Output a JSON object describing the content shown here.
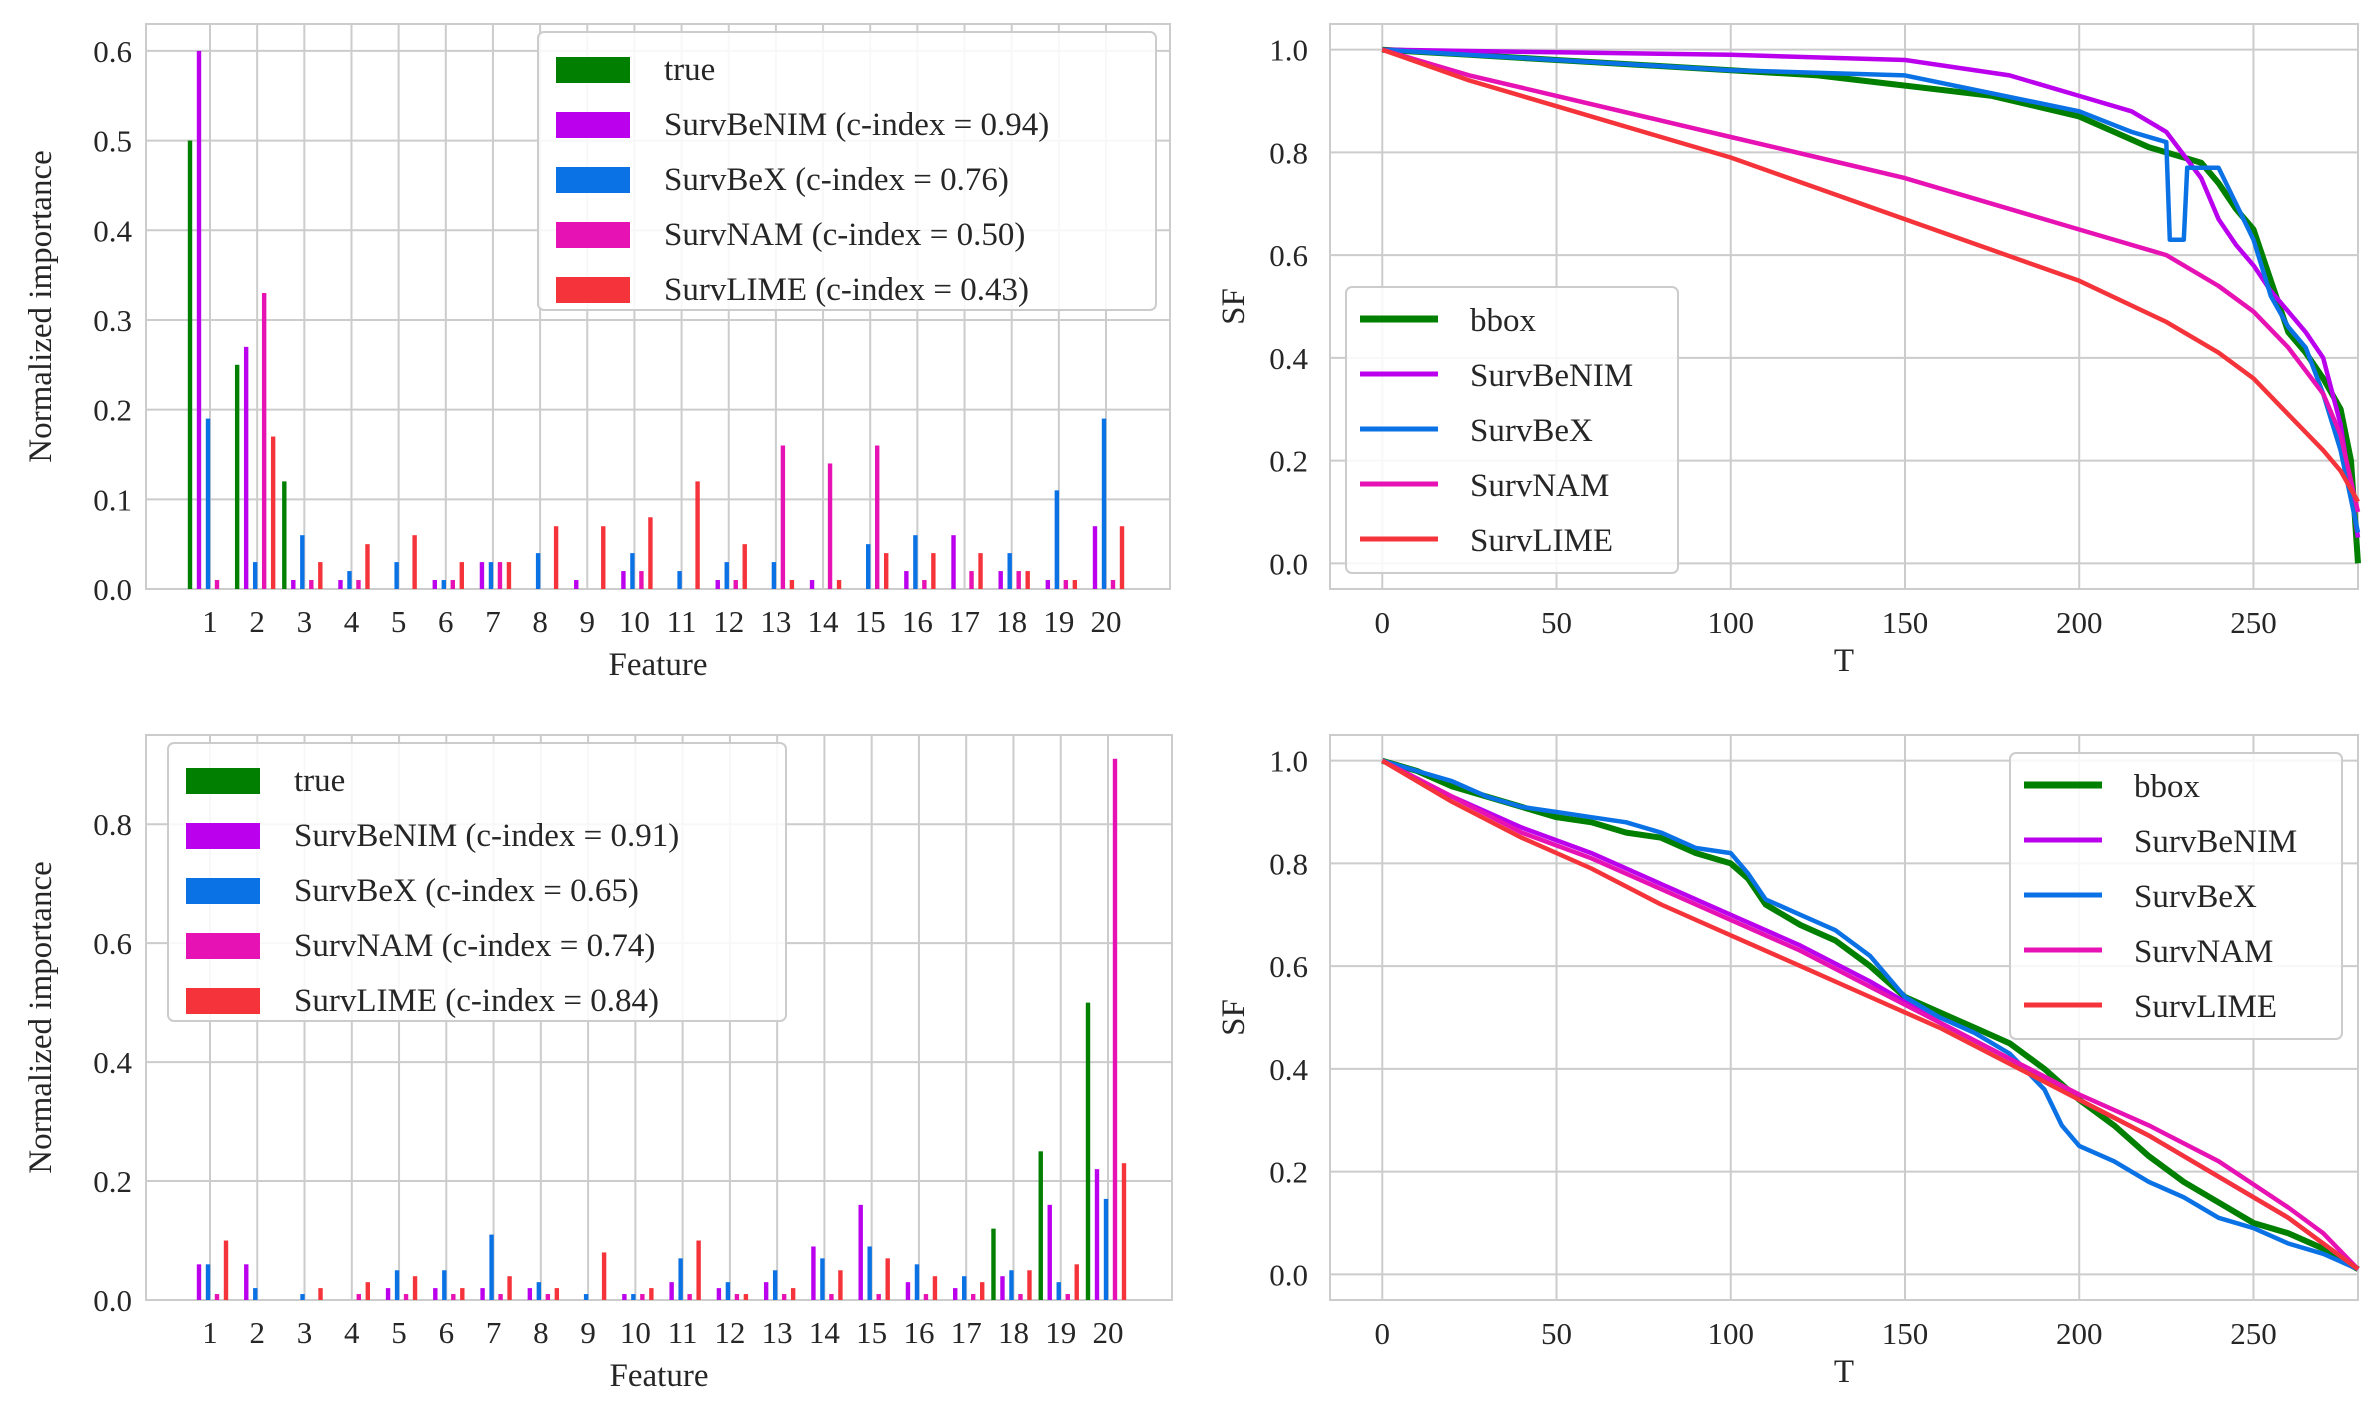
{
  "colors": {
    "true": "#007f00",
    "SurvBeNIM": "#bb00ee",
    "SurvBeX": "#0b72e5",
    "SurvNAM": "#e612b4",
    "SurvLIME": "#f5333a",
    "bbox": "#007f00",
    "grid": "#cccccc",
    "frame": "#cccccc"
  },
  "chart_data": [
    {
      "type": "bar",
      "xlabel": "Feature",
      "ylabel": "Normalized importance",
      "ylim": [
        0,
        0.63
      ],
      "yticks": [
        "0.0",
        "0.1",
        "0.2",
        "0.3",
        "0.4",
        "0.5",
        "0.6"
      ],
      "ytick_values": [
        0,
        0.1,
        0.2,
        0.3,
        0.4,
        0.5,
        0.6
      ],
      "grid": true,
      "legend_position": "top-right",
      "categories": [
        "1",
        "2",
        "3",
        "4",
        "5",
        "6",
        "7",
        "8",
        "9",
        "10",
        "11",
        "12",
        "13",
        "14",
        "15",
        "16",
        "17",
        "18",
        "19",
        "20"
      ],
      "series": [
        {
          "name": "true",
          "color_key": "true",
          "values": [
            0.5,
            0.25,
            0.12,
            0,
            0,
            0,
            0,
            0,
            0,
            0,
            0,
            0,
            0,
            0,
            0,
            0,
            0,
            0,
            0,
            0
          ]
        },
        {
          "name": "SurvBeNIM (c-index = 0.94)",
          "color_key": "SurvBeNIM",
          "values": [
            0.6,
            0.27,
            0.01,
            0.01,
            0,
            0.01,
            0.03,
            0,
            0.01,
            0.02,
            0,
            0.01,
            0,
            0.01,
            0,
            0.02,
            0.06,
            0.02,
            0.01,
            0.07
          ]
        },
        {
          "name": "SurvBeX (c-index = 0.76)",
          "color_key": "SurvBeX",
          "values": [
            0.19,
            0.03,
            0.06,
            0.02,
            0.03,
            0.01,
            0.03,
            0.04,
            0,
            0.04,
            0.02,
            0.03,
            0.03,
            0,
            0.05,
            0.06,
            0,
            0.04,
            0.11,
            0.19
          ]
        },
        {
          "name": "SurvNAM (c-index = 0.50)",
          "color_key": "SurvNAM",
          "values": [
            0.01,
            0.33,
            0.01,
            0.01,
            0,
            0.01,
            0.03,
            0,
            0,
            0.02,
            0,
            0.01,
            0.16,
            0.14,
            0.16,
            0.01,
            0.02,
            0.02,
            0.01,
            0.01
          ]
        },
        {
          "name": "SurvLIME (c-index = 0.43)",
          "color_key": "SurvLIME",
          "values": [
            0,
            0.17,
            0.03,
            0.05,
            0.06,
            0.03,
            0.03,
            0.07,
            0.07,
            0.08,
            0.12,
            0.05,
            0.01,
            0.01,
            0.04,
            0.04,
            0.04,
            0.02,
            0.01,
            0.07
          ]
        }
      ]
    },
    {
      "type": "line",
      "xlabel": "T",
      "ylabel": "SF",
      "xlim": [
        -15,
        280
      ],
      "ylim": [
        -0.05,
        1.05
      ],
      "xticks": [
        "0",
        "50",
        "100",
        "150",
        "200",
        "250"
      ],
      "xtick_values": [
        0,
        50,
        100,
        150,
        200,
        250
      ],
      "yticks": [
        "0.0",
        "0.2",
        "0.4",
        "0.6",
        "0.8",
        "1.0"
      ],
      "ytick_values": [
        0,
        0.2,
        0.4,
        0.6,
        0.8,
        1.0
      ],
      "grid": true,
      "legend_position": "lower-left",
      "series": [
        {
          "name": "bbox",
          "color_key": "bbox",
          "x": [
            0,
            25,
            50,
            75,
            100,
            125,
            150,
            175,
            200,
            210,
            220,
            230,
            235,
            240,
            245,
            250,
            255,
            260,
            265,
            270,
            275,
            278,
            280
          ],
          "y": [
            1.0,
            0.99,
            0.98,
            0.97,
            0.96,
            0.95,
            0.93,
            0.91,
            0.87,
            0.84,
            0.81,
            0.79,
            0.78,
            0.74,
            0.69,
            0.65,
            0.55,
            0.45,
            0.41,
            0.36,
            0.3,
            0.2,
            0.0
          ]
        },
        {
          "name": "SurvBeNIM",
          "color_key": "SurvBeNIM",
          "x": [
            0,
            50,
            100,
            150,
            180,
            200,
            215,
            225,
            235,
            240,
            245,
            250,
            255,
            260,
            265,
            270,
            275,
            280
          ],
          "y": [
            1.0,
            0.995,
            0.99,
            0.98,
            0.95,
            0.91,
            0.88,
            0.84,
            0.75,
            0.67,
            0.62,
            0.58,
            0.53,
            0.49,
            0.45,
            0.4,
            0.27,
            0.05
          ]
        },
        {
          "name": "SurvBeX",
          "color_key": "SurvBeX",
          "x": [
            0,
            50,
            100,
            150,
            200,
            215,
            225,
            226,
            230,
            231,
            240,
            250,
            255,
            260,
            265,
            270,
            275,
            280
          ],
          "y": [
            1.0,
            0.98,
            0.96,
            0.95,
            0.88,
            0.84,
            0.82,
            0.63,
            0.63,
            0.77,
            0.77,
            0.63,
            0.52,
            0.46,
            0.42,
            0.33,
            0.22,
            0.06
          ]
        },
        {
          "name": "SurvNAM",
          "color_key": "SurvNAM",
          "x": [
            0,
            25,
            50,
            75,
            100,
            125,
            150,
            175,
            200,
            225,
            240,
            250,
            260,
            270,
            275,
            280
          ],
          "y": [
            1.0,
            0.95,
            0.91,
            0.87,
            0.83,
            0.79,
            0.75,
            0.7,
            0.65,
            0.6,
            0.54,
            0.49,
            0.42,
            0.33,
            0.25,
            0.1
          ]
        },
        {
          "name": "SurvLIME",
          "color_key": "SurvLIME",
          "x": [
            0,
            25,
            50,
            75,
            100,
            125,
            150,
            175,
            200,
            225,
            240,
            250,
            260,
            270,
            275,
            280
          ],
          "y": [
            1.0,
            0.94,
            0.89,
            0.84,
            0.79,
            0.73,
            0.67,
            0.61,
            0.55,
            0.47,
            0.41,
            0.36,
            0.29,
            0.22,
            0.18,
            0.12
          ]
        }
      ]
    },
    {
      "type": "bar",
      "xlabel": "Feature",
      "ylabel": "Normalized importance",
      "ylim": [
        0,
        0.95
      ],
      "yticks": [
        "0.0",
        "0.2",
        "0.4",
        "0.6",
        "0.8"
      ],
      "ytick_values": [
        0,
        0.2,
        0.4,
        0.6,
        0.8
      ],
      "grid": true,
      "legend_position": "top-left",
      "categories": [
        "1",
        "2",
        "3",
        "4",
        "5",
        "6",
        "7",
        "8",
        "9",
        "10",
        "11",
        "12",
        "13",
        "14",
        "15",
        "16",
        "17",
        "18",
        "19",
        "20"
      ],
      "series": [
        {
          "name": "true",
          "color_key": "true",
          "values": [
            0,
            0,
            0,
            0,
            0,
            0,
            0,
            0,
            0,
            0,
            0,
            0,
            0,
            0,
            0,
            0,
            0,
            0.12,
            0.25,
            0.5
          ]
        },
        {
          "name": "SurvBeNIM (c-index = 0.91)",
          "color_key": "SurvBeNIM",
          "values": [
            0.06,
            0.06,
            0,
            0,
            0.02,
            0.02,
            0.02,
            0.02,
            0,
            0.01,
            0.03,
            0.02,
            0.03,
            0.09,
            0.16,
            0.03,
            0.02,
            0.04,
            0.16,
            0.22
          ]
        },
        {
          "name": "SurvBeX (c-index = 0.65)",
          "color_key": "SurvBeX",
          "values": [
            0.06,
            0.02,
            0.01,
            0,
            0.05,
            0.05,
            0.11,
            0.03,
            0.01,
            0.01,
            0.07,
            0.03,
            0.05,
            0.07,
            0.09,
            0.06,
            0.04,
            0.05,
            0.03,
            0.17
          ]
        },
        {
          "name": "SurvNAM (c-index = 0.74)",
          "color_key": "SurvNAM",
          "values": [
            0.01,
            0,
            0,
            0.01,
            0.01,
            0.01,
            0.01,
            0.01,
            0,
            0.01,
            0.01,
            0.01,
            0.01,
            0.01,
            0.01,
            0.01,
            0.01,
            0.01,
            0.01,
            0.91
          ]
        },
        {
          "name": "SurvLIME (c-index = 0.84)",
          "color_key": "SurvLIME",
          "values": [
            0.1,
            0,
            0.02,
            0.03,
            0.04,
            0.02,
            0.04,
            0.02,
            0.08,
            0.02,
            0.1,
            0.01,
            0.02,
            0.05,
            0.07,
            0.04,
            0.03,
            0.05,
            0.06,
            0.23
          ]
        }
      ]
    },
    {
      "type": "line",
      "xlabel": "T",
      "ylabel": "SF",
      "xlim": [
        -15,
        280
      ],
      "ylim": [
        -0.05,
        1.05
      ],
      "xticks": [
        "0",
        "50",
        "100",
        "150",
        "200",
        "250"
      ],
      "xtick_values": [
        0,
        50,
        100,
        150,
        200,
        250
      ],
      "yticks": [
        "0.0",
        "0.2",
        "0.4",
        "0.6",
        "0.8",
        "1.0"
      ],
      "ytick_values": [
        0,
        0.2,
        0.4,
        0.6,
        0.8,
        1.0
      ],
      "grid": true,
      "legend_position": "top-right",
      "series": [
        {
          "name": "bbox",
          "color_key": "bbox",
          "x": [
            0,
            10,
            20,
            30,
            40,
            50,
            60,
            70,
            80,
            90,
            100,
            105,
            110,
            120,
            130,
            140,
            150,
            160,
            170,
            180,
            190,
            200,
            210,
            220,
            230,
            240,
            250,
            260,
            270,
            280
          ],
          "y": [
            1.0,
            0.98,
            0.95,
            0.93,
            0.91,
            0.89,
            0.88,
            0.86,
            0.85,
            0.82,
            0.8,
            0.77,
            0.72,
            0.68,
            0.65,
            0.6,
            0.54,
            0.51,
            0.48,
            0.45,
            0.4,
            0.34,
            0.29,
            0.23,
            0.18,
            0.14,
            0.1,
            0.08,
            0.05,
            0.01
          ]
        },
        {
          "name": "SurvBeNIM",
          "color_key": "SurvBeNIM",
          "x": [
            0,
            20,
            40,
            60,
            80,
            100,
            120,
            140,
            160,
            180,
            200,
            220,
            240,
            260,
            270,
            280
          ],
          "y": [
            1.0,
            0.93,
            0.87,
            0.82,
            0.76,
            0.7,
            0.64,
            0.57,
            0.49,
            0.42,
            0.34,
            0.27,
            0.19,
            0.11,
            0.06,
            0.01
          ]
        },
        {
          "name": "SurvBeX",
          "color_key": "SurvBeX",
          "x": [
            0,
            10,
            20,
            30,
            40,
            50,
            60,
            70,
            80,
            90,
            100,
            105,
            110,
            120,
            130,
            140,
            150,
            160,
            170,
            180,
            190,
            195,
            200,
            210,
            220,
            230,
            240,
            250,
            260,
            270,
            280
          ],
          "y": [
            1.0,
            0.98,
            0.96,
            0.93,
            0.91,
            0.9,
            0.89,
            0.88,
            0.86,
            0.83,
            0.82,
            0.78,
            0.73,
            0.7,
            0.67,
            0.62,
            0.54,
            0.5,
            0.47,
            0.43,
            0.36,
            0.29,
            0.25,
            0.22,
            0.18,
            0.15,
            0.11,
            0.09,
            0.06,
            0.04,
            0.01
          ]
        },
        {
          "name": "SurvNAM",
          "color_key": "SurvNAM",
          "x": [
            0,
            20,
            40,
            60,
            80,
            100,
            120,
            140,
            160,
            180,
            200,
            220,
            240,
            260,
            270,
            280
          ],
          "y": [
            1.0,
            0.93,
            0.86,
            0.81,
            0.75,
            0.69,
            0.63,
            0.56,
            0.49,
            0.42,
            0.35,
            0.29,
            0.22,
            0.13,
            0.08,
            0.01
          ]
        },
        {
          "name": "SurvLIME",
          "color_key": "SurvLIME",
          "x": [
            0,
            20,
            40,
            60,
            80,
            100,
            120,
            140,
            160,
            180,
            200,
            220,
            240,
            260,
            270,
            280
          ],
          "y": [
            1.0,
            0.92,
            0.85,
            0.79,
            0.72,
            0.66,
            0.6,
            0.54,
            0.48,
            0.41,
            0.34,
            0.27,
            0.19,
            0.11,
            0.06,
            0.01
          ]
        }
      ]
    }
  ]
}
